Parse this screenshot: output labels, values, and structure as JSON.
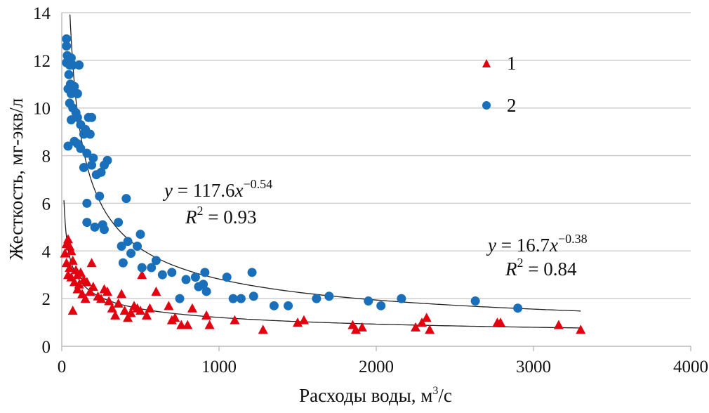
{
  "chart_data": {
    "type": "scatter",
    "xlabel": "Расходы воды, м³/с",
    "xlabel_main": "Расходы воды, м",
    "xlabel_sup": "3",
    "xlabel_tail": "/с",
    "ylabel": "Жесткость, мг-экв/л",
    "xlim": [
      0,
      4000
    ],
    "ylim": [
      0,
      14
    ],
    "xticks": [
      0,
      1000,
      2000,
      3000,
      4000
    ],
    "yticks": [
      0,
      2,
      4,
      6,
      8,
      10,
      12,
      14
    ],
    "grid": "horizontal",
    "legend_placement": "top-right",
    "series": [
      {
        "name": "1",
        "marker": "triangle",
        "color": "#e3000f",
        "trend": {
          "a": 16.7,
          "b": -0.38,
          "r2": "0.84",
          "equation_prefix": "y = 16.7x",
          "exponent": "−0.38",
          "r2_label": "= 0.84"
        },
        "points": [
          [
            20,
            3.9
          ],
          [
            30,
            4.3
          ],
          [
            40,
            4.5
          ],
          [
            50,
            4.2
          ],
          [
            60,
            4.0
          ],
          [
            30,
            3.5
          ],
          [
            50,
            3.3
          ],
          [
            70,
            3.6
          ],
          [
            40,
            3.0
          ],
          [
            60,
            2.9
          ],
          [
            90,
            3.2
          ],
          [
            100,
            3.0
          ],
          [
            120,
            3.1
          ],
          [
            80,
            2.7
          ],
          [
            110,
            2.6
          ],
          [
            140,
            2.8
          ],
          [
            160,
            2.7
          ],
          [
            190,
            3.5
          ],
          [
            70,
            1.5
          ],
          [
            100,
            2.4
          ],
          [
            130,
            2.2
          ],
          [
            150,
            2.0
          ],
          [
            180,
            2.3
          ],
          [
            200,
            2.5
          ],
          [
            230,
            2.1
          ],
          [
            250,
            2.0
          ],
          [
            270,
            2.4
          ],
          [
            290,
            2.3
          ],
          [
            300,
            1.9
          ],
          [
            320,
            1.6
          ],
          [
            340,
            1.3
          ],
          [
            360,
            1.8
          ],
          [
            380,
            2.2
          ],
          [
            400,
            1.5
          ],
          [
            420,
            1.2
          ],
          [
            440,
            1.4
          ],
          [
            460,
            1.7
          ],
          [
            480,
            1.6
          ],
          [
            500,
            1.5
          ],
          [
            510,
            3.0
          ],
          [
            540,
            1.3
          ],
          [
            560,
            1.6
          ],
          [
            600,
            2.3
          ],
          [
            680,
            1.7
          ],
          [
            700,
            1.1
          ],
          [
            720,
            1.2
          ],
          [
            760,
            0.9
          ],
          [
            800,
            0.9
          ],
          [
            830,
            1.6
          ],
          [
            920,
            1.3
          ],
          [
            940,
            0.9
          ],
          [
            1100,
            1.1
          ],
          [
            1280,
            0.7
          ],
          [
            1500,
            1.0
          ],
          [
            1540,
            1.1
          ],
          [
            1850,
            0.9
          ],
          [
            1870,
            0.7
          ],
          [
            1910,
            0.8
          ],
          [
            2250,
            0.8
          ],
          [
            2290,
            1.0
          ],
          [
            2320,
            1.2
          ],
          [
            2340,
            0.7
          ],
          [
            2770,
            1.0
          ],
          [
            2790,
            1.0
          ],
          [
            3160,
            0.9
          ],
          [
            3300,
            0.7
          ]
        ]
      },
      {
        "name": "2",
        "marker": "circle",
        "color": "#1a6fba",
        "trend": {
          "a": 117.6,
          "b": -0.54,
          "r2": "0.93",
          "equation_prefix": "y = 117.6x",
          "exponent": "−0.54",
          "r2_label": "= 0.93"
        },
        "points": [
          [
            30,
            12.9
          ],
          [
            30,
            12.6
          ],
          [
            35,
            12.2
          ],
          [
            30,
            11.9
          ],
          [
            50,
            11.8
          ],
          [
            45,
            11.4
          ],
          [
            60,
            12.1
          ],
          [
            70,
            11.8
          ],
          [
            55,
            11.0
          ],
          [
            40,
            10.8
          ],
          [
            60,
            10.6
          ],
          [
            80,
            10.9
          ],
          [
            110,
            11.8
          ],
          [
            100,
            10.6
          ],
          [
            50,
            10.2
          ],
          [
            70,
            10.0
          ],
          [
            90,
            9.8
          ],
          [
            60,
            9.5
          ],
          [
            100,
            9.6
          ],
          [
            120,
            9.3
          ],
          [
            150,
            9.1
          ],
          [
            170,
            9.6
          ],
          [
            190,
            9.6
          ],
          [
            140,
            8.9
          ],
          [
            180,
            8.9
          ],
          [
            80,
            8.6
          ],
          [
            40,
            8.4
          ],
          [
            100,
            8.5
          ],
          [
            120,
            8.3
          ],
          [
            160,
            8.1
          ],
          [
            200,
            7.9
          ],
          [
            190,
            7.6
          ],
          [
            140,
            7.5
          ],
          [
            220,
            7.2
          ],
          [
            250,
            7.3
          ],
          [
            270,
            7.6
          ],
          [
            290,
            7.8
          ],
          [
            240,
            6.3
          ],
          [
            160,
            6.0
          ],
          [
            410,
            6.2
          ],
          [
            160,
            5.2
          ],
          [
            210,
            5.0
          ],
          [
            260,
            5.1
          ],
          [
            270,
            4.9
          ],
          [
            360,
            5.2
          ],
          [
            380,
            4.2
          ],
          [
            420,
            4.4
          ],
          [
            440,
            3.9
          ],
          [
            480,
            4.2
          ],
          [
            500,
            4.7
          ],
          [
            390,
            3.5
          ],
          [
            510,
            3.3
          ],
          [
            570,
            3.3
          ],
          [
            600,
            3.6
          ],
          [
            640,
            3.0
          ],
          [
            700,
            3.1
          ],
          [
            750,
            2.0
          ],
          [
            790,
            2.8
          ],
          [
            850,
            2.9
          ],
          [
            870,
            2.5
          ],
          [
            910,
            3.1
          ],
          [
            900,
            2.6
          ],
          [
            920,
            2.3
          ],
          [
            1050,
            2.9
          ],
          [
            1090,
            2.0
          ],
          [
            1140,
            2.0
          ],
          [
            1210,
            3.1
          ],
          [
            1220,
            2.1
          ],
          [
            1350,
            1.7
          ],
          [
            1440,
            1.7
          ],
          [
            1620,
            2.0
          ],
          [
            1700,
            2.1
          ],
          [
            1950,
            1.9
          ],
          [
            2030,
            1.7
          ],
          [
            2160,
            2.0
          ],
          [
            2630,
            1.9
          ],
          [
            2900,
            1.6
          ]
        ]
      }
    ]
  }
}
